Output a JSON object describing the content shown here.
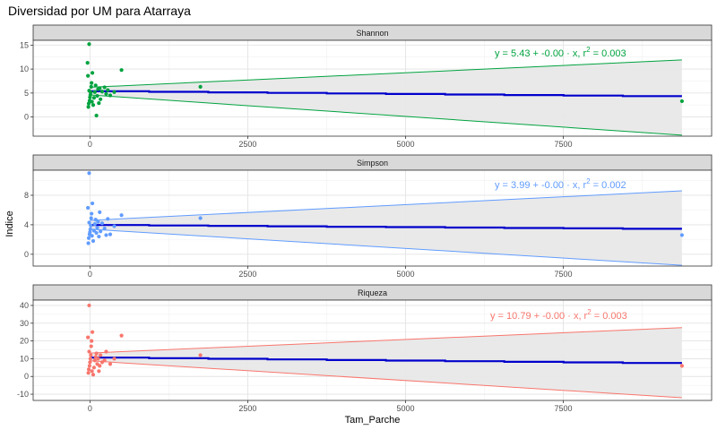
{
  "title": "Diversidad por UM para Atarraya",
  "chart_data": {
    "type": "scatter",
    "xlabel": "Tam_Parche",
    "ylabel": "Indice",
    "xlim": [
      -900,
      9850
    ],
    "x_ticks": [
      0,
      2500,
      5000,
      7500
    ],
    "x_tick_labels": [
      "0",
      "2500",
      "5000",
      "7500"
    ],
    "grid": true,
    "facets": [
      {
        "name": "Shannon",
        "color": "#00A33F",
        "ylim": [
          -4,
          16
        ],
        "y_ticks": [
          0,
          5,
          10,
          15
        ],
        "y_tick_labels": [
          "0",
          "5",
          "10",
          "15"
        ],
        "equation": {
          "prefix": "y = 5.43 + -0.00 · x,  r",
          "sup": "2",
          "suffix": " = 0.003"
        },
        "regression": {
          "intercept": 5.43,
          "slope": -0.00012
        },
        "band_at_max": [
          -3.8,
          11.9
        ],
        "band_at_zero": [
          4.6,
          6.2
        ],
        "x_max": 9380,
        "points": [
          [
            -10,
            15.2
          ],
          [
            -20,
            2.1
          ],
          [
            -15,
            2.8
          ],
          [
            -5,
            3.4
          ],
          [
            0,
            4.1
          ],
          [
            5,
            4.6
          ],
          [
            10,
            5.1
          ],
          [
            -10,
            5.5
          ],
          [
            15,
            6.3
          ],
          [
            20,
            7.1
          ],
          [
            -25,
            8.6
          ],
          [
            30,
            9.2
          ],
          [
            -30,
            11.3
          ],
          [
            25,
            3.2
          ],
          [
            40,
            2.5
          ],
          [
            50,
            4.0
          ],
          [
            60,
            5.2
          ],
          [
            70,
            6.6
          ],
          [
            80,
            0.3
          ],
          [
            90,
            4.4
          ],
          [
            100,
            5.8
          ],
          [
            110,
            2.9
          ],
          [
            120,
            6.0
          ],
          [
            130,
            3.7
          ],
          [
            150,
            5.3
          ],
          [
            180,
            6.2
          ],
          [
            200,
            4.8
          ],
          [
            220,
            5.6
          ],
          [
            250,
            4.5
          ],
          [
            300,
            5.2
          ],
          [
            500,
            9.8
          ],
          [
            1750,
            6.3
          ],
          [
            9380,
            3.3
          ]
        ]
      },
      {
        "name": "Simpson",
        "color": "#619CFF",
        "ylim": [
          -1.6,
          11.4
        ],
        "y_ticks": [
          0,
          4,
          8
        ],
        "y_tick_labels": [
          "0",
          "4",
          "8"
        ],
        "equation": {
          "prefix": "y = 3.99 + -0.00 · x,  r",
          "sup": "2",
          "suffix": " = 0.002"
        },
        "regression": {
          "intercept": 3.99,
          "slope": -6e-05
        },
        "band_at_max": [
          -1.5,
          8.6
        ],
        "band_at_zero": [
          3.4,
          4.6
        ],
        "x_max": 9380,
        "points": [
          [
            -10,
            11.0
          ],
          [
            -20,
            1.5
          ],
          [
            -15,
            2.2
          ],
          [
            -5,
            2.7
          ],
          [
            0,
            3.0
          ],
          [
            5,
            3.4
          ],
          [
            10,
            3.9
          ],
          [
            -10,
            4.3
          ],
          [
            15,
            4.9
          ],
          [
            20,
            5.5
          ],
          [
            -25,
            6.3
          ],
          [
            30,
            6.9
          ],
          [
            25,
            2.5
          ],
          [
            40,
            1.8
          ],
          [
            50,
            3.2
          ],
          [
            60,
            4.1
          ],
          [
            70,
            4.7
          ],
          [
            80,
            2.9
          ],
          [
            90,
            3.6
          ],
          [
            100,
            4.4
          ],
          [
            110,
            2.4
          ],
          [
            120,
            5.7
          ],
          [
            130,
            3.1
          ],
          [
            150,
            4.2
          ],
          [
            180,
            3.5
          ],
          [
            200,
            2.6
          ],
          [
            220,
            4.8
          ],
          [
            250,
            2.7
          ],
          [
            300,
            3.8
          ],
          [
            500,
            5.3
          ],
          [
            1750,
            4.9
          ],
          [
            9380,
            2.6
          ]
        ]
      },
      {
        "name": "Riqueza",
        "color": "#F8766D",
        "ylim": [
          -13.5,
          43
        ],
        "y_ticks": [
          -10,
          0,
          10,
          20,
          30,
          40
        ],
        "y_tick_labels": [
          "-10",
          "0",
          "10",
          "20",
          "30",
          "40"
        ],
        "equation": {
          "prefix": "y = 10.79 + -0.00 · x,  r",
          "sup": "2",
          "suffix": " = 0.003"
        },
        "regression": {
          "intercept": 10.79,
          "slope": -0.00036
        },
        "band_at_max": [
          -12.0,
          27.5
        ],
        "band_at_zero": [
          8.8,
          13.2
        ],
        "x_max": 9380,
        "points": [
          [
            -10,
            40.0
          ],
          [
            -20,
            2.0
          ],
          [
            -15,
            4.0
          ],
          [
            -5,
            6.0
          ],
          [
            0,
            8.0
          ],
          [
            5,
            10.0
          ],
          [
            10,
            12.0
          ],
          [
            -10,
            14.0
          ],
          [
            15,
            17.0
          ],
          [
            20,
            20.0
          ],
          [
            -25,
            22.0
          ],
          [
            30,
            25.0
          ],
          [
            25,
            3.0
          ],
          [
            40,
            1.0
          ],
          [
            50,
            5.0
          ],
          [
            60,
            9.0
          ],
          [
            70,
            11.0
          ],
          [
            80,
            13.0
          ],
          [
            90,
            7.0
          ],
          [
            100,
            10.0
          ],
          [
            110,
            3.0
          ],
          [
            120,
            6.0
          ],
          [
            130,
            12.0
          ],
          [
            150,
            8.0
          ],
          [
            180,
            9.0
          ],
          [
            200,
            14.0
          ],
          [
            250,
            7.0
          ],
          [
            300,
            10.0
          ],
          [
            500,
            23.0
          ],
          [
            1750,
            12.0
          ],
          [
            9380,
            6.0
          ]
        ]
      }
    ]
  }
}
